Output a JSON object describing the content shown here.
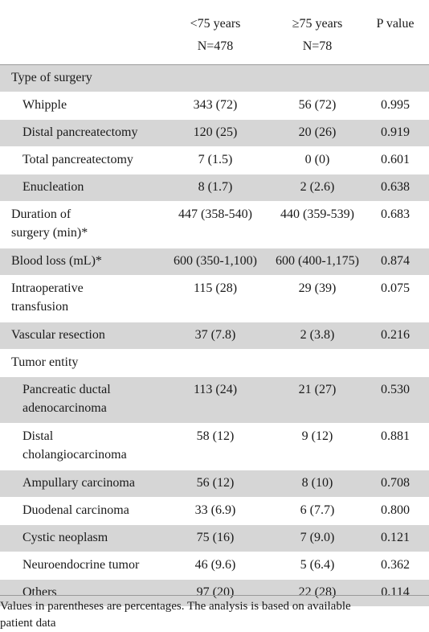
{
  "header": {
    "col1_line1": "<75 years",
    "col1_line2": "N=478",
    "col2_line1": "≥75 years",
    "col2_line2": "N=78",
    "col3": "P value"
  },
  "rows": [
    {
      "label": "Type of surgery",
      "v1": "",
      "v2": "",
      "p": ""
    },
    {
      "label": "Whipple",
      "v1": "343 (72)",
      "v2": "56 (72)",
      "p": "0.995"
    },
    {
      "label": "Distal pancreatectomy",
      "v1": "120 (25)",
      "v2": "20 (26)",
      "p": "0.919"
    },
    {
      "label": "Total pancreatectomy",
      "v1": "7 (1.5)",
      "v2": "0 (0)",
      "p": "0.601"
    },
    {
      "label": "Enucleation",
      "v1": "8 (1.7)",
      "v2": "2 (2.6)",
      "p": "0.638"
    },
    {
      "label": "Duration of",
      "label2": "surgery (min)*",
      "v1": "447 (358-540)",
      "v2": "440 (359-539)",
      "p": "0.683"
    },
    {
      "label": "Blood loss (mL)*",
      "v1": "600 (350-1,100)",
      "v2": "600 (400-1,175)",
      "p": "0.874"
    },
    {
      "label": "Intraoperative",
      "label2": "transfusion",
      "v1": "115 (28)",
      "v2": "29 (39)",
      "p": "0.075"
    },
    {
      "label": "Vascular resection",
      "v1": "37 (7.8)",
      "v2": "2 (3.8)",
      "p": "0.216"
    },
    {
      "label": "Tumor entity",
      "v1": "",
      "v2": "",
      "p": ""
    },
    {
      "label": "Pancreatic ductal",
      "label2": "adenocarcinoma",
      "v1": "113 (24)",
      "v2": "21 (27)",
      "p": "0.530"
    },
    {
      "label": "Distal",
      "label2": "cholangiocarcinoma",
      "v1": "58 (12)",
      "v2": "9 (12)",
      "p": "0.881"
    },
    {
      "label": "Ampullary carcinoma",
      "v1": "56 (12)",
      "v2": "8 (10)",
      "p": "0.708"
    },
    {
      "label": "Duodenal carcinoma",
      "v1": "33 (6.9)",
      "v2": "6 (7.7)",
      "p": "0.800"
    },
    {
      "label": "Cystic neoplasm",
      "v1": "75 (16)",
      "v2": "7 (9.0)",
      "p": "0.121"
    },
    {
      "label": "Neuroendocrine tumor",
      "v1": "46 (9.6)",
      "v2": "5 (6.4)",
      "p": "0.362"
    },
    {
      "label": "Others",
      "v1": "97 (20)",
      "v2": "22 (28)",
      "p": "0.114"
    }
  ],
  "footnote": {
    "line1": "Values in parentheses are percentages. The analysis is based on available",
    "line2": "patient data"
  }
}
